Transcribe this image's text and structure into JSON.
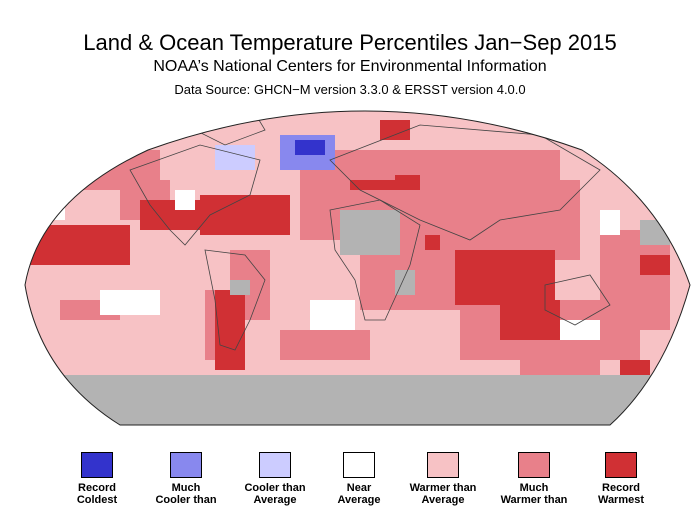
{
  "header": {
    "title": "Land & Ocean Temperature Percentiles Jan−Sep 2015",
    "subtitle": "NOAA’s National Centers for Environmental Information",
    "source": "Data Source: GHCN−M version 3.3.0 & ERSST version 4.0.0"
  },
  "map": {
    "projection": "Robinson",
    "dominant_category": "Warmer than Average",
    "no_data_color": "#b3b3b3"
  },
  "legend": [
    {
      "label": "Record\nColdest",
      "color": "#3333cc"
    },
    {
      "label": "Much\nCooler than",
      "color": "#8888ee"
    },
    {
      "label": "Cooler than\nAverage",
      "color": "#ccccff"
    },
    {
      "label": "Near\nAverage",
      "color": "#ffffff"
    },
    {
      "label": "Warmer than\nAverage",
      "color": "#f7c2c5"
    },
    {
      "label": "Much\nWarmer than",
      "color": "#e8808a"
    },
    {
      "label": "Record\nWarmest",
      "color": "#d03034"
    }
  ]
}
